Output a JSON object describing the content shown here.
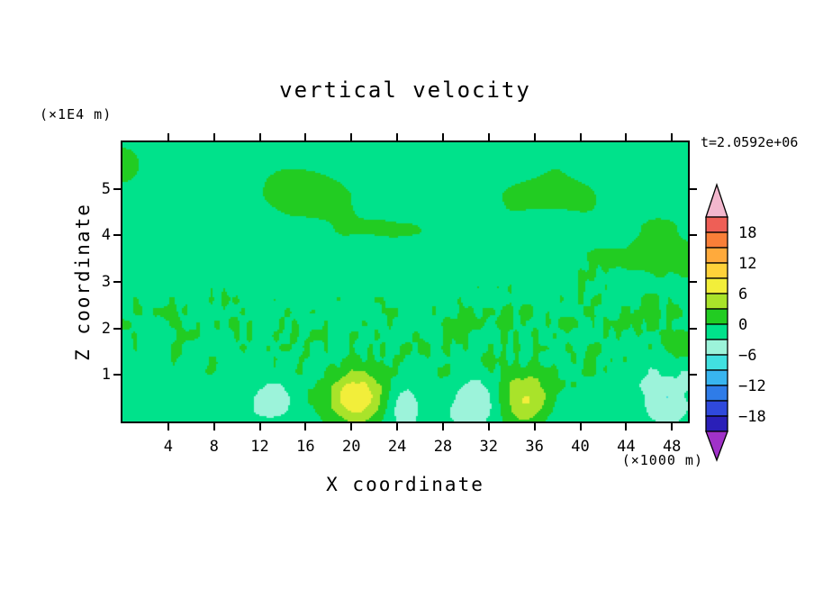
{
  "window": {
    "background": "#ffffff"
  },
  "chart": {
    "title": "vertical velocity",
    "time_annotation": "t=2.0592e+06",
    "x_axis_label": "X coordinate",
    "y_axis_label": "Z coordinate",
    "x_unit_label": "(×1000 m)",
    "y_unit_label": "(×1E4 m)"
  },
  "chart_data": {
    "type": "filled_contour",
    "title": "vertical velocity",
    "time": "t=2.0592e+06",
    "x_axis": {
      "label": "X coordinate",
      "units": "×1000 m",
      "range": [
        0,
        49.4
      ],
      "ticks": [
        4,
        8,
        12,
        16,
        20,
        24,
        28,
        32,
        36,
        40,
        44,
        48
      ]
    },
    "z_axis": {
      "label": "Z coordinate",
      "units": "×1E4 m",
      "range": [
        0,
        6.0
      ],
      "ticks": [
        1,
        2,
        3,
        4,
        5
      ]
    },
    "contour_interval": 3,
    "levels": [
      -21,
      -18,
      -15,
      -12,
      -9,
      -6,
      -3,
      0,
      3,
      6,
      9,
      12,
      15,
      18,
      21
    ],
    "colors": [
      "#2a1fb8",
      "#2f49dc",
      "#2f7ce8",
      "#38b5ef",
      "#41e0e0",
      "#9cf3da",
      "#00e28b",
      "#22cc22",
      "#a9e32a",
      "#f2ee3a",
      "#ffd23a",
      "#ffaa3c",
      "#f97f38",
      "#ee5f56"
    ],
    "above_color": "#f2b7cd",
    "below_color": "#a032c8",
    "colorbar_labels": [
      18,
      12,
      6,
      0,
      -6,
      -12,
      -18
    ],
    "background_color": "#00e28b",
    "field_description": "near-zero spring-green field; elongated green streaks aloft (z>3); fine green speckle for 1<z<3; yellow updraft cores near surface at x≈20 and x≈35; pale cyan downdraft patches near surface",
    "features": [
      {
        "name": "updraft-core",
        "x": 20.3,
        "z": 0.5,
        "peak": 9.5,
        "sx": 1.8,
        "sz": 0.42
      },
      {
        "name": "updraft-core",
        "x": 35.4,
        "z": 0.55,
        "peak": 8.0,
        "sx": 1.6,
        "sz": 0.4
      },
      {
        "name": "downdraft-patch",
        "x": 13.0,
        "z": 0.45,
        "peak": -4.5,
        "sx": 1.4,
        "sz": 0.35
      },
      {
        "name": "downdraft-patch",
        "x": 30.8,
        "z": 0.45,
        "peak": -4.0,
        "sx": 1.5,
        "sz": 0.35
      },
      {
        "name": "downdraft-patch",
        "x": 47.3,
        "z": 0.5,
        "peak": -4.5,
        "sx": 1.3,
        "sz": 0.4
      },
      {
        "name": "downdraft-patch",
        "x": 24.5,
        "z": 0.35,
        "peak": -3.5,
        "sx": 1.0,
        "sz": 0.3
      }
    ],
    "noise": {
      "seed": 7
    }
  }
}
